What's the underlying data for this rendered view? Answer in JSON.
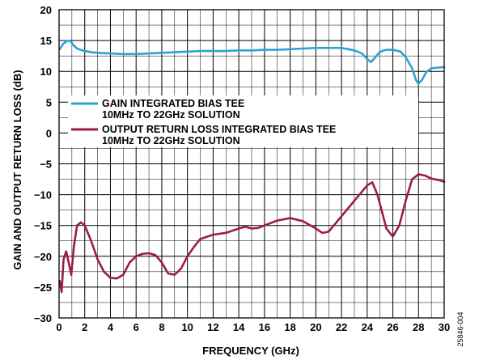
{
  "colors": {
    "gain": "#2aa3d4",
    "return_loss": "#9c1d42",
    "grid": "#000000",
    "background": "#ffffff"
  },
  "figure_id": "25846-004",
  "chart_data": {
    "type": "line",
    "xlabel": "FREQUENCY (GHz)",
    "ylabel": "GAIN AND OUTPUT RETURN LOSS (dB)",
    "xlim": [
      0,
      30
    ],
    "ylim": [
      -30,
      20
    ],
    "xticks": [
      0,
      2,
      4,
      6,
      8,
      10,
      12,
      14,
      16,
      18,
      20,
      22,
      24,
      26,
      28,
      30
    ],
    "yticks": [
      -30,
      -25,
      -20,
      -15,
      -10,
      -5,
      0,
      5,
      10,
      15,
      20
    ],
    "xtick_labels": [
      "0",
      "2",
      "4",
      "6",
      "8",
      "10",
      "12",
      "14",
      "16",
      "18",
      "20",
      "22",
      "24",
      "26",
      "28",
      "30"
    ],
    "ytick_labels": [
      "−30",
      "−25",
      "−20",
      "−15",
      "−10",
      "−5",
      "0",
      "5",
      "10",
      "15",
      "20"
    ],
    "grid": true,
    "legend_position": "upper-left",
    "series": [
      {
        "name": "GAIN INTEGRATED BIAS TEE\n10MHz TO 22GHz SOLUTION",
        "color": "#2aa3d4",
        "x": [
          0.05,
          0.3,
          0.6,
          0.85,
          1.1,
          1.4,
          1.8,
          2.5,
          3,
          4,
          5,
          6,
          7,
          8,
          9,
          10,
          11,
          12,
          13,
          14,
          15,
          16,
          17,
          18,
          19,
          20,
          21,
          22,
          23,
          23.6,
          24,
          24.3,
          24.6,
          25,
          25.5,
          26,
          26.6,
          27,
          27.5,
          27.8,
          28,
          28.3,
          28.6,
          29,
          29.5,
          30
        ],
        "y": [
          13.6,
          14.4,
          14.9,
          15.0,
          14.3,
          13.7,
          13.4,
          13.1,
          13.0,
          12.9,
          12.8,
          12.8,
          12.9,
          13.0,
          13.1,
          13.2,
          13.3,
          13.3,
          13.3,
          13.4,
          13.4,
          13.5,
          13.5,
          13.6,
          13.7,
          13.8,
          13.8,
          13.8,
          13.4,
          12.9,
          12.0,
          11.5,
          12.2,
          13.2,
          13.5,
          13.5,
          13.2,
          12.3,
          10.5,
          8.6,
          8.0,
          8.7,
          9.9,
          10.5,
          10.6,
          10.7
        ]
      },
      {
        "name": "OUTPUT RETURN LOSS INTEGRATED BIAS TEE\n10MHz TO 22GHz SOLUTION",
        "color": "#9c1d42",
        "x": [
          0.05,
          0.2,
          0.35,
          0.55,
          0.75,
          0.95,
          1.15,
          1.4,
          1.7,
          2,
          2.5,
          3,
          3.5,
          4,
          4.5,
          5,
          5.5,
          6,
          6.5,
          7,
          7.5,
          8,
          8.5,
          9,
          9.5,
          10,
          10.5,
          11,
          12,
          13,
          14,
          14.5,
          15,
          15.5,
          16,
          17,
          18,
          19,
          20,
          20.5,
          21,
          22,
          23,
          24,
          24.4,
          24.8,
          25.5,
          26,
          26.5,
          27,
          27.5,
          28,
          28.5,
          29,
          29.5,
          30
        ],
        "y": [
          -24.0,
          -25.8,
          -20.5,
          -19.2,
          -21.0,
          -23.0,
          -18.5,
          -15.0,
          -14.5,
          -15.0,
          -17.5,
          -20.5,
          -22.5,
          -23.5,
          -23.6,
          -23.0,
          -21.0,
          -20.0,
          -19.6,
          -19.5,
          -19.8,
          -21.0,
          -22.8,
          -23.0,
          -22.0,
          -20.0,
          -18.5,
          -17.2,
          -16.5,
          -16.2,
          -15.5,
          -15.2,
          -15.5,
          -15.4,
          -15.0,
          -14.2,
          -13.8,
          -14.3,
          -15.5,
          -16.2,
          -16.0,
          -13.5,
          -11.0,
          -8.5,
          -8.0,
          -10.0,
          -15.5,
          -16.8,
          -15.0,
          -11.0,
          -7.5,
          -6.7,
          -6.9,
          -7.4,
          -7.6,
          -7.9
        ]
      }
    ]
  }
}
